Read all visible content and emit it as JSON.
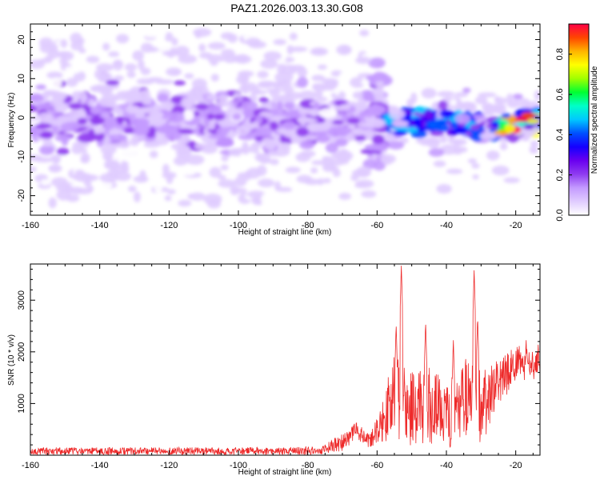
{
  "figure_title": "PAZ1.2026.003.13.30.G08",
  "chart_data": [
    {
      "type": "heatmap",
      "title": "PAZ1.2026.003.13.30.G08",
      "xlabel": "Height of straight line (km)",
      "ylabel": "Frequency (Hz)",
      "xlim": [
        -160,
        -13
      ],
      "ylim": [
        -25,
        24
      ],
      "xticks": [
        -160,
        -140,
        -120,
        -100,
        -80,
        -60,
        -40,
        -20
      ],
      "yticks": [
        -20,
        -10,
        0,
        10,
        20
      ],
      "colorbar": {
        "label": "Normalized spectral amplitude",
        "range": [
          0,
          0.95
        ],
        "ticks": [
          0.0,
          0.2,
          0.4,
          0.6,
          0.8
        ],
        "colors": [
          "#ffffff",
          "#e0ccff",
          "#c49bff",
          "#8f3cf0",
          "#6a00f0",
          "#1500ff",
          "#0050ff",
          "#00c8ff",
          "#00ffc8",
          "#00ff32",
          "#a0ff00",
          "#ffff00",
          "#ffb400",
          "#ff4600",
          "#ff0046"
        ]
      },
      "main_track": [
        {
          "x": -160,
          "f": 0
        },
        {
          "x": -120,
          "f": -1
        },
        {
          "x": -100,
          "f": 0
        },
        {
          "x": -80,
          "f": -1
        },
        {
          "x": -65,
          "f": -1
        },
        {
          "x": -56,
          "f": -1
        },
        {
          "x": -50,
          "f": -1
        },
        {
          "x": -45,
          "f": -1
        },
        {
          "x": -40,
          "f": -1
        },
        {
          "x": -35,
          "f": -2
        },
        {
          "x": -30,
          "f": -3
        },
        {
          "x": -25,
          "f": -2.5
        },
        {
          "x": -20,
          "f": -2
        },
        {
          "x": -17,
          "f": -1
        },
        {
          "x": -13,
          "f": 0
        }
      ],
      "peak_region": {
        "x_range": [
          -25,
          -13
        ],
        "f_range": [
          -4,
          1
        ],
        "max_amplitude": 0.95
      }
    },
    {
      "type": "line",
      "series_name": "SNR",
      "xlabel": "Height of straight line (km)",
      "ylabel": "SNR (10 * v/v)",
      "xlim": [
        -160,
        -13
      ],
      "ylim": [
        0,
        3700
      ],
      "xticks": [
        -160,
        -140,
        -120,
        -100,
        -80,
        -60,
        -40,
        -20
      ],
      "yticks": [
        1000,
        2000,
        3000
      ],
      "color": "#ee2a2a",
      "envelope": [
        {
          "x": -160,
          "mean": 80,
          "noise": 80
        },
        {
          "x": -100,
          "mean": 80,
          "noise": 80
        },
        {
          "x": -76,
          "mean": 90,
          "noise": 90
        },
        {
          "x": -70,
          "mean": 250,
          "noise": 200
        },
        {
          "x": -66,
          "mean": 500,
          "noise": 200
        },
        {
          "x": -62,
          "mean": 250,
          "noise": 150
        },
        {
          "x": -58,
          "mean": 700,
          "noise": 500
        },
        {
          "x": -55,
          "mean": 1200,
          "noise": 1000
        },
        {
          "x": -50,
          "mean": 900,
          "noise": 800
        },
        {
          "x": -45,
          "mean": 1000,
          "noise": 900
        },
        {
          "x": -40,
          "mean": 700,
          "noise": 700
        },
        {
          "x": -35,
          "mean": 1100,
          "noise": 900
        },
        {
          "x": -30,
          "mean": 900,
          "noise": 800
        },
        {
          "x": -25,
          "mean": 1400,
          "noise": 500
        },
        {
          "x": -20,
          "mean": 1750,
          "noise": 400
        },
        {
          "x": -16,
          "mean": 1800,
          "noise": 350
        },
        {
          "x": -13,
          "mean": 1700,
          "noise": 300
        }
      ],
      "peaks": [
        {
          "x": -53,
          "y": 3680
        },
        {
          "x": -54.5,
          "y": 2550
        },
        {
          "x": -46,
          "y": 2600
        },
        {
          "x": -38,
          "y": 2250
        },
        {
          "x": -32,
          "y": 3590
        },
        {
          "x": -31,
          "y": 2700
        },
        {
          "x": -13.5,
          "y": 2200
        },
        {
          "x": -19,
          "y": 2150
        },
        {
          "x": -17,
          "y": 2250
        }
      ]
    }
  ]
}
